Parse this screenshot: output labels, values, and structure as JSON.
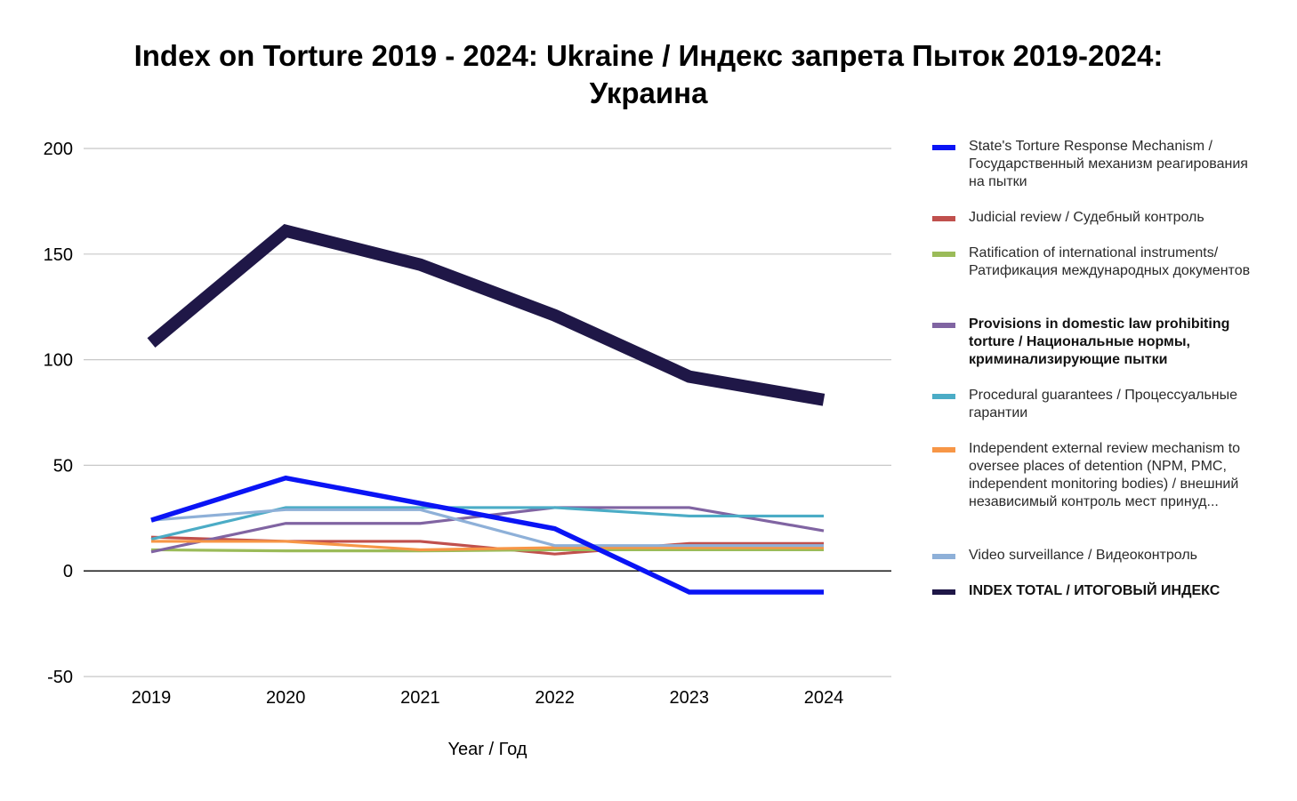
{
  "chart_data": {
    "type": "line",
    "title": "Index on Torture 2019 - 2024: Ukraine / Индекс запрета Пыток 2019-2024: Украина",
    "xlabel": "Year / Год",
    "ylabel": "",
    "categories": [
      "2019",
      "2020",
      "2021",
      "2022",
      "2023",
      "2024"
    ],
    "ylim": [
      -50,
      200
    ],
    "yticks": [
      "200",
      "150",
      "100",
      "50",
      "0",
      "-50"
    ],
    "grid": true,
    "legend_position": "right",
    "series": [
      {
        "name": "State's Torture Response Mechanism / Государственный механизм реагирования на пытки",
        "color": "#0a14f5",
        "weight": "medium",
        "values": [
          24,
          44,
          32,
          20,
          -10,
          -10
        ]
      },
      {
        "name": "Judicial review / Судебный контроль",
        "color": "#c0504d",
        "weight": "thin",
        "values": [
          16,
          14,
          14,
          8,
          13,
          13
        ]
      },
      {
        "name": "Ratification of international instruments/ Ратификация международных документов",
        "color": "#9bbb59",
        "weight": "thin",
        "values": [
          10,
          9.5,
          9.5,
          10,
          10,
          10
        ]
      },
      {
        "name": "Provisions in domestic law prohibiting torture / Национальные нормы, криминализирующие пытки",
        "color": "#8064a2",
        "weight": "thin",
        "bold_label": true,
        "values": [
          9,
          22.5,
          22.5,
          30,
          30,
          19
        ]
      },
      {
        "name": "Procedural guarantees / Процессуальные гарантии",
        "color": "#4bacc6",
        "weight": "thin",
        "values": [
          15,
          30,
          30,
          30,
          26,
          26
        ]
      },
      {
        "name": "Independent external review mechanism to oversee places of detention (NPM, PMC, independent monitoring bodies) / внешний независимый контроль мест принуд...",
        "color": "#f79646",
        "weight": "thin",
        "values": [
          14,
          14,
          10,
          11,
          11,
          11
        ]
      },
      {
        "name": "Video surveillance / Видеоконтроль",
        "color": "#8eb0d8",
        "weight": "thin",
        "values": [
          24,
          29,
          29,
          12,
          12,
          12
        ]
      },
      {
        "name": "INDEX TOTAL /  ИТОГОВЫЙ ИНДЕКС",
        "color": "#1f1747",
        "weight": "heavy",
        "bold_label": true,
        "values": [
          108,
          161,
          145,
          121,
          92,
          81
        ]
      }
    ]
  }
}
